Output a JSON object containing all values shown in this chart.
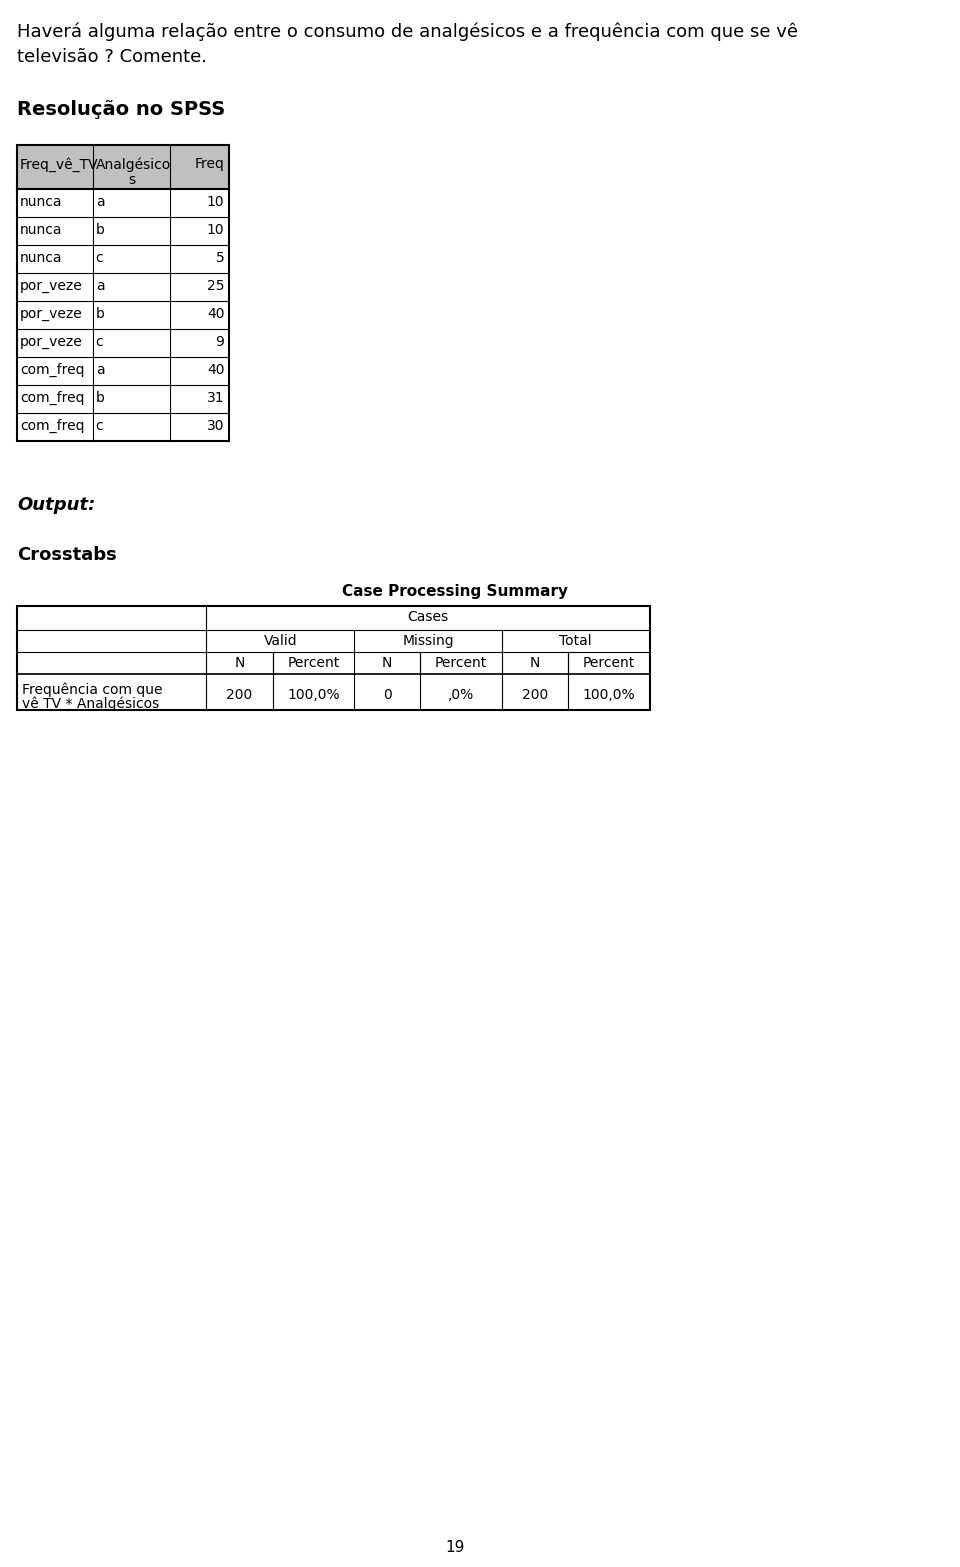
{
  "page_number": "19",
  "intro_text": "Haverá alguma relação entre o consumo de analgésicos e a frequência com que se vê\nthelevisão ? Comente.",
  "intro_text_line1": "Haverá alguma relação entre o consumo de analgésicos e a frequência com que se vê",
  "intro_text_line2": "televisão ? Comente.",
  "resolucao_label": "Resolução no SPSS",
  "spss_table_headers": [
    "Freq_vê_TV",
    "Analgésico\ns",
    "Freq"
  ],
  "spss_table_data": [
    [
      "nunca",
      "a",
      "10"
    ],
    [
      "nunca",
      "b",
      "10"
    ],
    [
      "nunca",
      "c",
      "5"
    ],
    [
      "por_veze",
      "a",
      "25"
    ],
    [
      "por_veze",
      "b",
      "40"
    ],
    [
      "por_veze",
      "c",
      "9"
    ],
    [
      "com_freq",
      "a",
      "40"
    ],
    [
      "com_freq",
      "b",
      "31"
    ],
    [
      "com_freq",
      "c",
      "30"
    ]
  ],
  "output_label": "Output:",
  "crosstabs_label": "Crosstabs",
  "case_proc_title": "Case Processing Summary",
  "cases_label": "Cases",
  "valid_label": "Valid",
  "missing_label": "Missing",
  "total_label": "Total",
  "n_label": "N",
  "percent_label": "Percent",
  "row_label_line1": "Frequência com que",
  "row_label_line2": "vê TV * Analgésicos",
  "valid_n": "200",
  "valid_pct": "100,0%",
  "missing_n": "0",
  "missing_pct": ",0%",
  "total_n": "200",
  "total_pct": "100,0%",
  "bg_color": "#ffffff",
  "header_bg": "#c0c0c0",
  "table_border": "#000000",
  "font_size_intro": 13,
  "font_size_resolucao": 14,
  "font_size_output": 13,
  "font_size_crosstabs": 13,
  "font_size_table": 10,
  "font_size_page": 11
}
